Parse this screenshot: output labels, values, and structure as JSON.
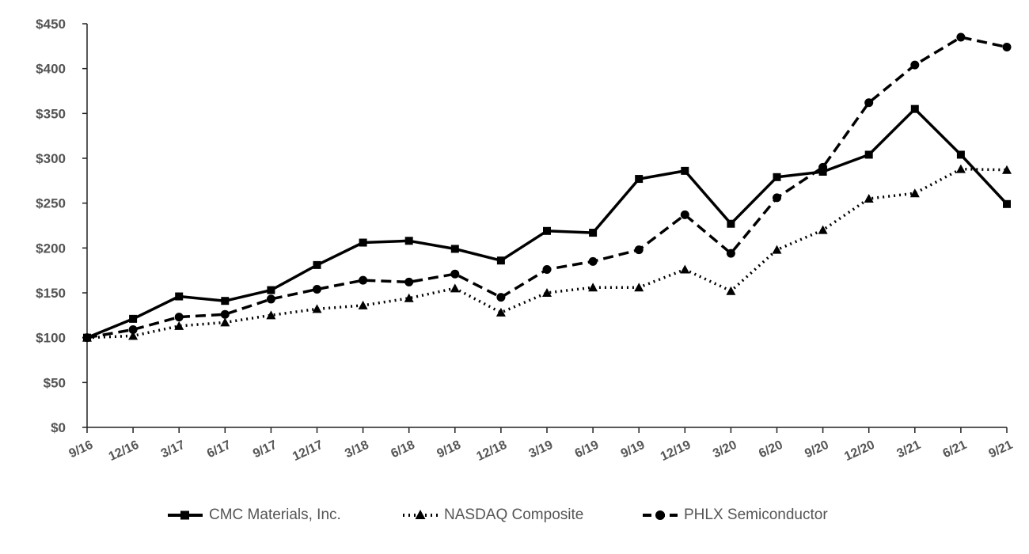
{
  "chart_data": {
    "type": "line",
    "x": [
      "9/16",
      "12/16",
      "3/17",
      "6/17",
      "9/17",
      "12/17",
      "3/18",
      "6/18",
      "9/18",
      "12/18",
      "3/19",
      "6/19",
      "9/19",
      "12/19",
      "3/20",
      "6/20",
      "9/20",
      "12/20",
      "3/21",
      "6/21",
      "9/21"
    ],
    "ylim": [
      0,
      450
    ],
    "yticks": [
      0,
      50,
      100,
      150,
      200,
      250,
      300,
      350,
      400,
      450
    ],
    "ytick_labels": [
      "$0",
      "$50",
      "$100",
      "$150",
      "$200",
      "$250",
      "$300",
      "$350",
      "$400",
      "$450"
    ],
    "grid": false,
    "legend_position": "bottom",
    "series": [
      {
        "name": "CMC Materials, Inc.",
        "line_style": "solid",
        "marker": "square",
        "color": "#000000",
        "values": [
          100,
          121,
          146,
          141,
          153,
          181,
          206,
          208,
          199,
          186,
          219,
          217,
          277,
          286,
          227,
          279,
          285,
          304,
          355,
          304,
          249
        ]
      },
      {
        "name": "NASDAQ Composite",
        "line_style": "dotted",
        "marker": "triangle",
        "color": "#000000",
        "values": [
          100,
          102,
          113,
          117,
          125,
          132,
          136,
          144,
          155,
          128,
          150,
          156,
          156,
          176,
          152,
          198,
          220,
          255,
          261,
          288,
          287
        ]
      },
      {
        "name": "PHLX Semiconductor",
        "line_style": "dashed",
        "marker": "circle",
        "color": "#000000",
        "values": [
          100,
          109,
          123,
          126,
          143,
          154,
          164,
          162,
          171,
          145,
          176,
          185,
          198,
          237,
          194,
          256,
          290,
          362,
          404,
          435,
          424
        ]
      }
    ]
  }
}
